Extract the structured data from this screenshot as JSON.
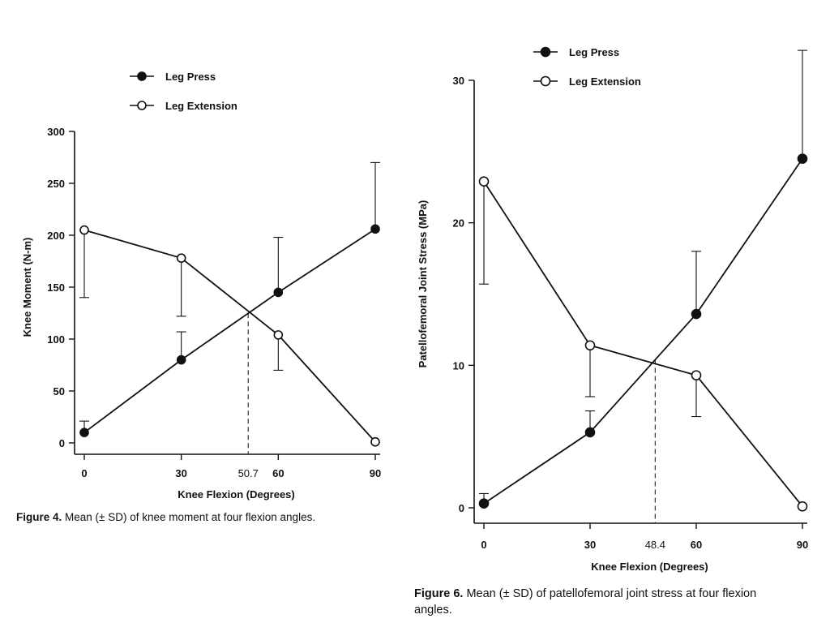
{
  "chart_data": [
    {
      "type": "line",
      "xlabel": "Knee Flexion (Degrees)",
      "ylabel": "Knee Moment (N-m)",
      "x": [
        0,
        30,
        60,
        90
      ],
      "xticks": [
        0,
        30,
        60,
        90
      ],
      "xlim": [
        0,
        90
      ],
      "ylim": [
        0,
        300
      ],
      "yticks": [
        0,
        50,
        100,
        150,
        200,
        250,
        300
      ],
      "legend_position": "top-left",
      "crossover": {
        "x": 50.7,
        "label": "50.7",
        "line_style": "dashed"
      },
      "series": [
        {
          "name": "Leg Press",
          "marker": "filled-circle",
          "values": [
            10,
            80,
            145,
            206
          ],
          "sd_upper": [
            21,
            107,
            198,
            270
          ]
        },
        {
          "name": "Leg Extension",
          "marker": "open-circle",
          "values": [
            205,
            178,
            104,
            1
          ],
          "sd_lower": [
            140,
            122,
            70,
            null
          ]
        }
      ],
      "caption": {
        "label": "Figure 4.",
        "text": " Mean (± SD) of knee moment at four flexion angles."
      }
    },
    {
      "type": "line",
      "xlabel": "Knee Flexion (Degrees)",
      "ylabel": "Patellofemoral Joint Stress (MPa)",
      "x": [
        0,
        30,
        60,
        90
      ],
      "xticks": [
        0,
        30,
        60,
        90
      ],
      "xlim": [
        0,
        90
      ],
      "ylim": [
        0,
        30
      ],
      "yticks": [
        0,
        10,
        20,
        30
      ],
      "legend_position": "top-left",
      "crossover": {
        "x": 48.4,
        "label": "48.4",
        "line_style": "dashed"
      },
      "series": [
        {
          "name": "Leg Press",
          "marker": "filled-circle",
          "values": [
            0.3,
            5.3,
            13.6,
            24.5
          ],
          "sd_upper": [
            1.0,
            6.8,
            18.0,
            32.1
          ]
        },
        {
          "name": "Leg Extension",
          "marker": "open-circle",
          "values": [
            22.9,
            11.4,
            9.3,
            0.1
          ],
          "sd_lower": [
            15.7,
            7.8,
            6.4,
            null
          ]
        }
      ],
      "caption": {
        "label": "Figure 6.",
        "text": " Mean (± SD) of patellofemoral joint stress at four flexion angles."
      }
    }
  ]
}
